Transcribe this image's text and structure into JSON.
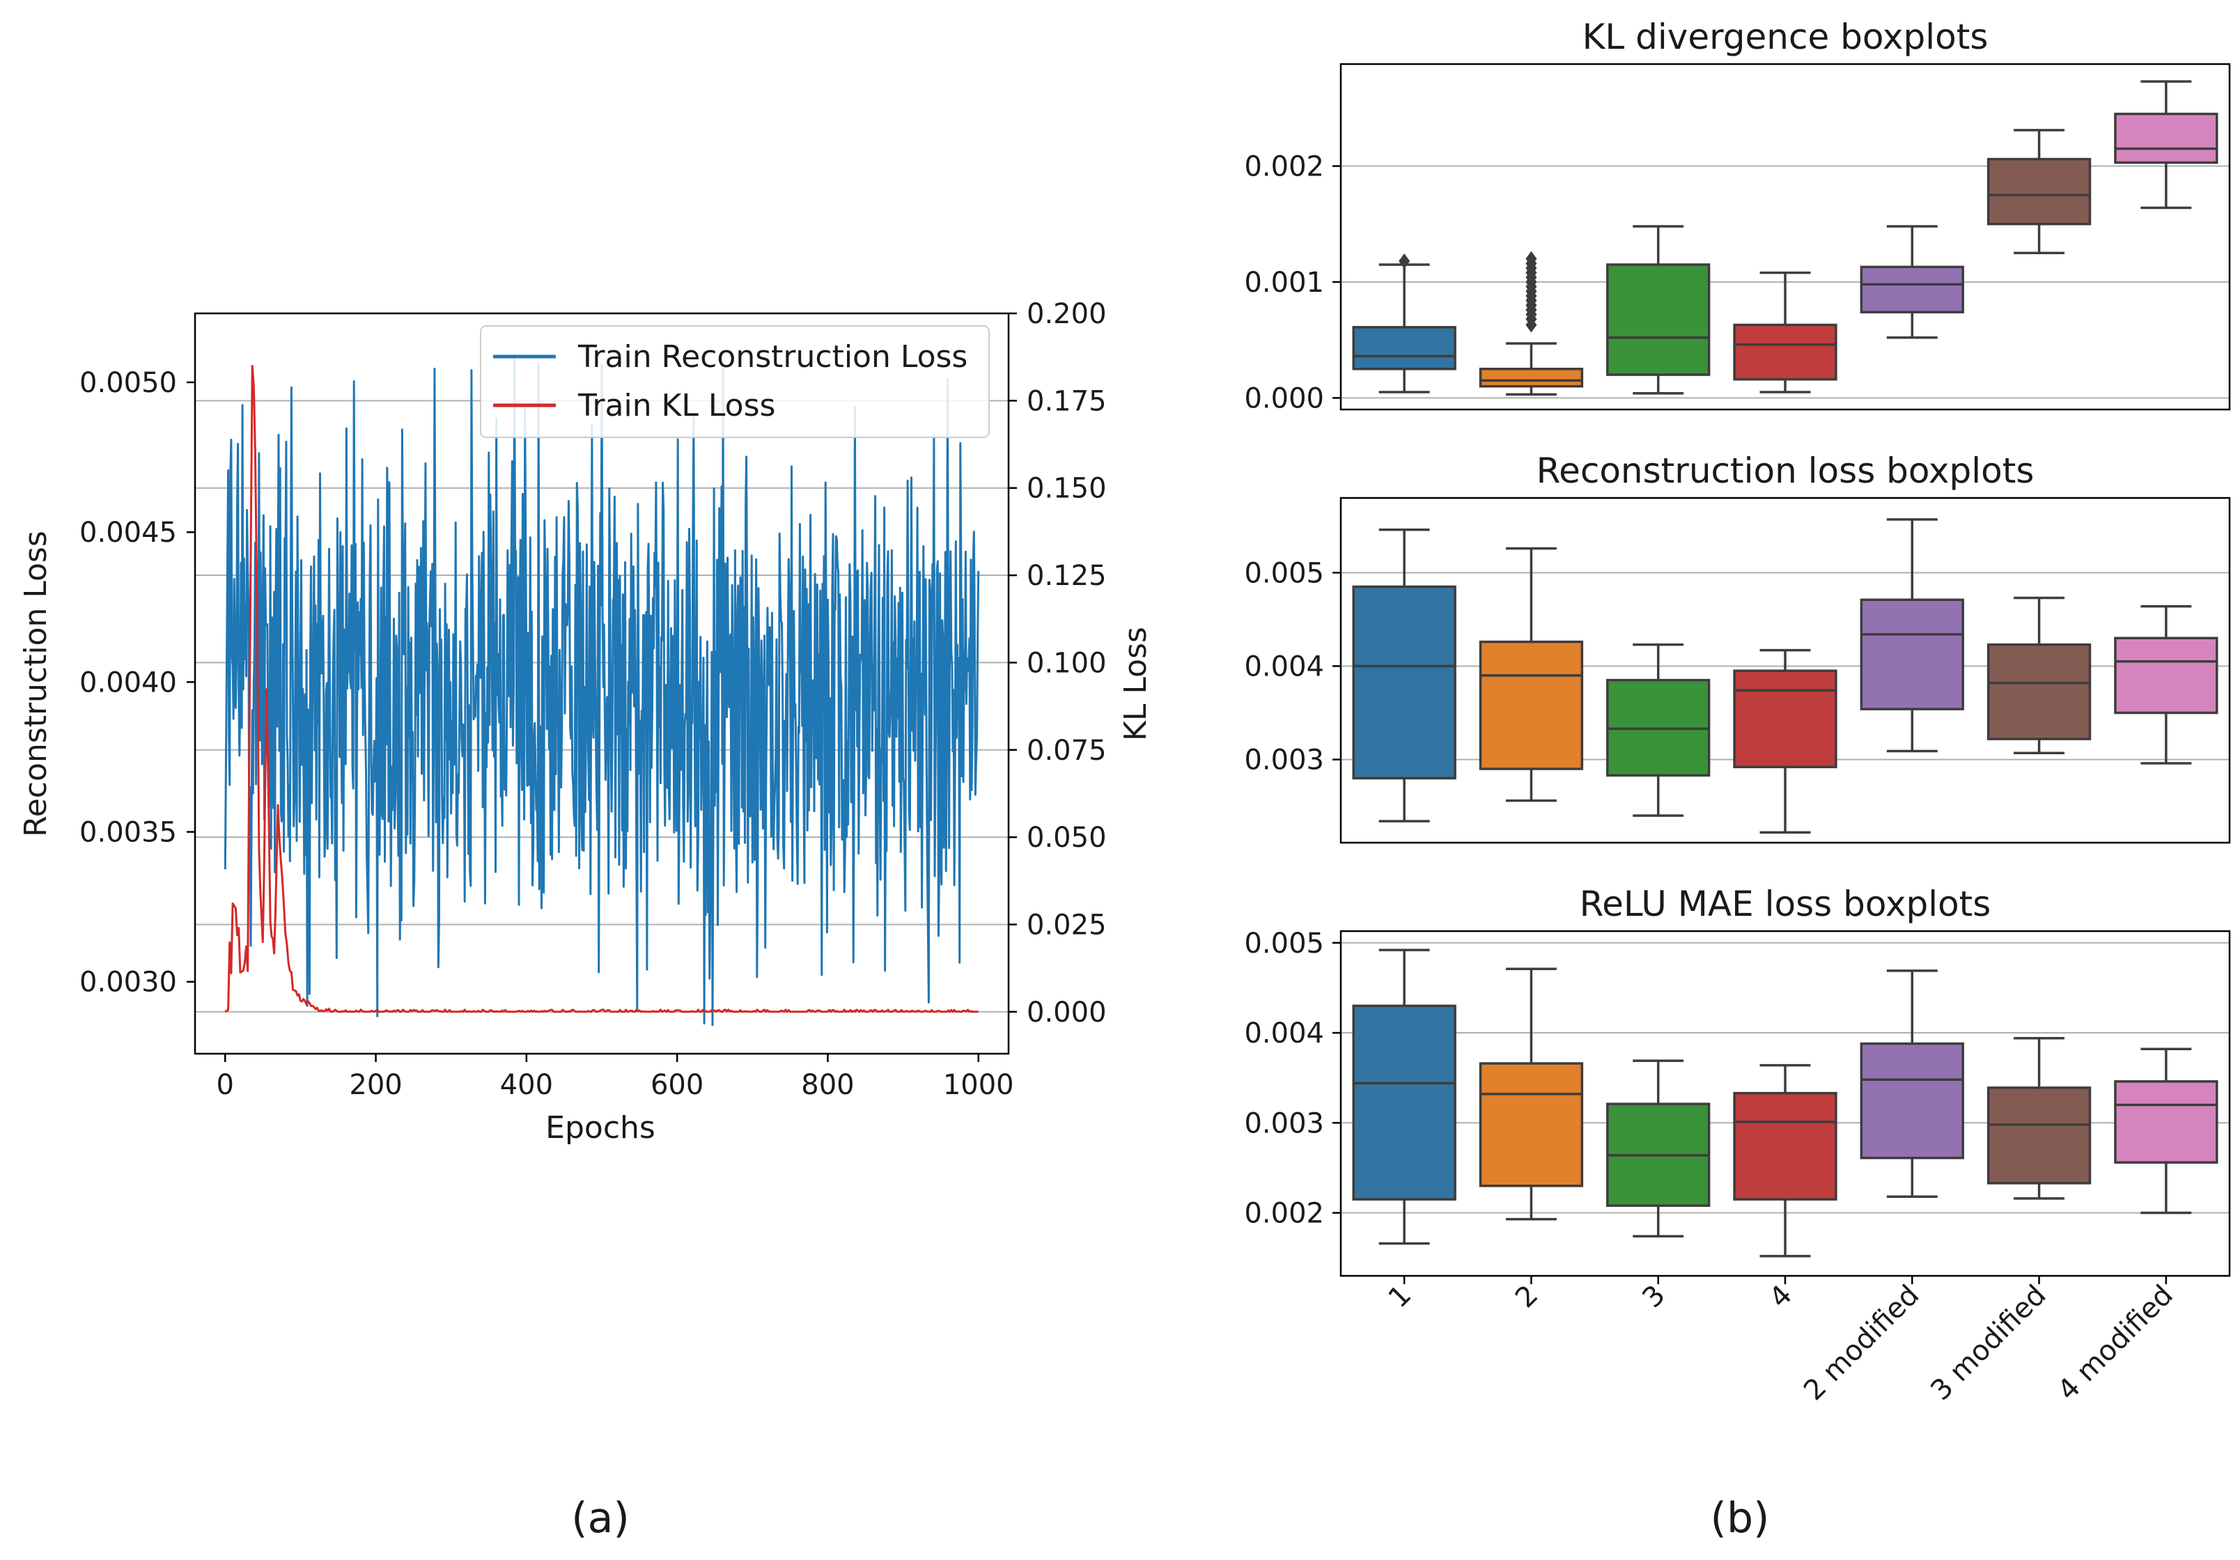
{
  "panel_labels": {
    "a": "(a)",
    "b": "(b)"
  },
  "chart_data": [
    {
      "type": "line",
      "xlabel": "Epochs",
      "ylabel": "Reconstruction Loss",
      "y2label": "KL Loss",
      "xlim": [
        -40,
        1040
      ],
      "ylim": [
        0.00276,
        0.00523
      ],
      "y2lim": [
        -0.012,
        0.2
      ],
      "xticks": [
        0,
        200,
        400,
        600,
        800,
        1000
      ],
      "xtick_labels": [
        "0",
        "200",
        "400",
        "600",
        "800",
        "1000"
      ],
      "yticks": [
        0.003,
        0.0035,
        0.004,
        0.0045,
        0.005
      ],
      "ytick_labels": [
        "0.0030",
        "0.0035",
        "0.0040",
        "0.0045",
        "0.0050"
      ],
      "y2ticks": [
        0,
        0.025,
        0.05,
        0.075,
        0.1,
        0.125,
        0.15,
        0.175,
        0.2
      ],
      "y2tick_labels": [
        "0.000",
        "0.025",
        "0.050",
        "0.075",
        "0.100",
        "0.125",
        "0.150",
        "0.175",
        "0.200"
      ],
      "grid": "y2",
      "legend": "top-right",
      "series": [
        {
          "name": "Train Reconstruction Loss",
          "axis": "left",
          "color": "#1f77b4",
          "approx_mean": 0.00395,
          "approx_min": 0.00285,
          "approx_max": 0.0051,
          "x": [
            0,
            20,
            40,
            60,
            80,
            100,
            150,
            200,
            250,
            300,
            350,
            400,
            450,
            500,
            550,
            600,
            650,
            700,
            750,
            800,
            850,
            900,
            950,
            1000
          ],
          "values": [
            0.0041,
            0.0045,
            0.0043,
            0.004,
            0.0039,
            0.004,
            0.0039,
            0.0039,
            0.0039,
            0.004,
            0.0039,
            0.004,
            0.0039,
            0.004,
            0.0039,
            0.0039,
            0.004,
            0.0039,
            0.0039,
            0.004,
            0.0039,
            0.004,
            0.0038,
            0.004
          ]
        },
        {
          "name": "Train KL Loss",
          "axis": "right",
          "color": "#d62728",
          "x": [
            0,
            10,
            20,
            30,
            36,
            40,
            45,
            50,
            55,
            60,
            65,
            70,
            80,
            90,
            100,
            120,
            150,
            200,
            400,
            600,
            800,
            1000
          ],
          "values": [
            0.0,
            0.025,
            0.018,
            0.012,
            0.19,
            0.16,
            0.05,
            0.02,
            0.09,
            0.03,
            0.015,
            0.06,
            0.02,
            0.008,
            0.004,
            0.001,
            0.0,
            0.0,
            0.0,
            0.0,
            0.0,
            0.0
          ]
        }
      ]
    },
    {
      "type": "boxplot",
      "title": "KL divergence boxplots",
      "ylim": [
        -0.0001,
        0.00288
      ],
      "yticks": [
        0,
        0.001,
        0.002
      ],
      "ytick_labels": [
        "0.000",
        "0.001",
        "0.002"
      ],
      "grid": "y",
      "categories": [
        "1",
        "2",
        "3",
        "4",
        "2 modified",
        "3 modified",
        "4 modified"
      ],
      "colors": [
        "#3274a1",
        "#e1812c",
        "#3a923a",
        "#c03d3e",
        "#9372b2",
        "#845b53",
        "#d684bd"
      ],
      "boxes": [
        {
          "whislo": 5e-05,
          "q1": 0.00025,
          "med": 0.00036,
          "q3": 0.00061,
          "whishi": 0.00115,
          "fliers": [
            0.00118
          ]
        },
        {
          "whislo": 3e-05,
          "q1": 0.0001,
          "med": 0.00015,
          "q3": 0.00025,
          "whishi": 0.00047,
          "fliers": [
            0.00063,
            0.00068,
            0.00072,
            0.00076,
            0.0008,
            0.00084,
            0.00088,
            0.00092,
            0.00096,
            0.001,
            0.00104,
            0.00108,
            0.00112,
            0.00116,
            0.0012
          ]
        },
        {
          "whislo": 4e-05,
          "q1": 0.0002,
          "med": 0.00052,
          "q3": 0.00115,
          "whishi": 0.00148,
          "fliers": []
        },
        {
          "whislo": 5e-05,
          "q1": 0.00016,
          "med": 0.00046,
          "q3": 0.00063,
          "whishi": 0.00108,
          "fliers": []
        },
        {
          "whislo": 0.00052,
          "q1": 0.00074,
          "med": 0.00098,
          "q3": 0.00113,
          "whishi": 0.00148,
          "fliers": []
        },
        {
          "whislo": 0.00125,
          "q1": 0.0015,
          "med": 0.00175,
          "q3": 0.00206,
          "whishi": 0.00231,
          "fliers": []
        },
        {
          "whislo": 0.00164,
          "q1": 0.00203,
          "med": 0.00215,
          "q3": 0.00245,
          "whishi": 0.00273,
          "fliers": []
        }
      ]
    },
    {
      "type": "boxplot",
      "title": "Reconstruction loss boxplots",
      "ylim": [
        0.00211,
        0.0058
      ],
      "yticks": [
        0.003,
        0.004,
        0.005
      ],
      "ytick_labels": [
        "0.003",
        "0.004",
        "0.005"
      ],
      "grid": "y",
      "categories": [
        "1",
        "2",
        "3",
        "4",
        "2 modified",
        "3 modified",
        "4 modified"
      ],
      "colors": [
        "#3274a1",
        "#e1812c",
        "#3a923a",
        "#c03d3e",
        "#9372b2",
        "#845b53",
        "#d684bd"
      ],
      "boxes": [
        {
          "whislo": 0.00234,
          "q1": 0.0028,
          "med": 0.004,
          "q3": 0.00485,
          "whishi": 0.00546,
          "fliers": []
        },
        {
          "whislo": 0.00256,
          "q1": 0.0029,
          "med": 0.0039,
          "q3": 0.00426,
          "whishi": 0.00526,
          "fliers": []
        },
        {
          "whislo": 0.0024,
          "q1": 0.00283,
          "med": 0.00333,
          "q3": 0.00385,
          "whishi": 0.00423,
          "fliers": []
        },
        {
          "whislo": 0.00222,
          "q1": 0.00292,
          "med": 0.00374,
          "q3": 0.00395,
          "whishi": 0.00417,
          "fliers": []
        },
        {
          "whislo": 0.00309,
          "q1": 0.00354,
          "med": 0.00434,
          "q3": 0.00471,
          "whishi": 0.00557,
          "fliers": []
        },
        {
          "whislo": 0.00307,
          "q1": 0.00322,
          "med": 0.00382,
          "q3": 0.00423,
          "whishi": 0.00473,
          "fliers": []
        },
        {
          "whislo": 0.00296,
          "q1": 0.0035,
          "med": 0.00405,
          "q3": 0.0043,
          "whishi": 0.00464,
          "fliers": []
        }
      ]
    },
    {
      "type": "boxplot",
      "title": "ReLU MAE loss boxplots",
      "ylim": [
        0.0013,
        0.00513
      ],
      "yticks": [
        0.002,
        0.003,
        0.004,
        0.005
      ],
      "ytick_labels": [
        "0.002",
        "0.003",
        "0.004",
        "0.005"
      ],
      "grid": "y",
      "categories": [
        "1",
        "2",
        "3",
        "4",
        "2 modified",
        "3 modified",
        "4 modified"
      ],
      "colors": [
        "#3274a1",
        "#e1812c",
        "#3a923a",
        "#c03d3e",
        "#9372b2",
        "#845b53",
        "#d684bd"
      ],
      "boxes": [
        {
          "whislo": 0.00166,
          "q1": 0.00215,
          "med": 0.00344,
          "q3": 0.0043,
          "whishi": 0.00492,
          "fliers": []
        },
        {
          "whislo": 0.00193,
          "q1": 0.0023,
          "med": 0.00332,
          "q3": 0.00366,
          "whishi": 0.00471,
          "fliers": []
        },
        {
          "whislo": 0.00174,
          "q1": 0.00208,
          "med": 0.00264,
          "q3": 0.00321,
          "whishi": 0.00369,
          "fliers": []
        },
        {
          "whislo": 0.00152,
          "q1": 0.00215,
          "med": 0.00301,
          "q3": 0.00333,
          "whishi": 0.00364,
          "fliers": []
        },
        {
          "whislo": 0.00218,
          "q1": 0.00261,
          "med": 0.00348,
          "q3": 0.00388,
          "whishi": 0.00469,
          "fliers": []
        },
        {
          "whislo": 0.00216,
          "q1": 0.00233,
          "med": 0.00298,
          "q3": 0.00339,
          "whishi": 0.00394,
          "fliers": []
        },
        {
          "whislo": 0.002,
          "q1": 0.00256,
          "med": 0.0032,
          "q3": 0.00346,
          "whishi": 0.00382,
          "fliers": []
        }
      ]
    }
  ]
}
